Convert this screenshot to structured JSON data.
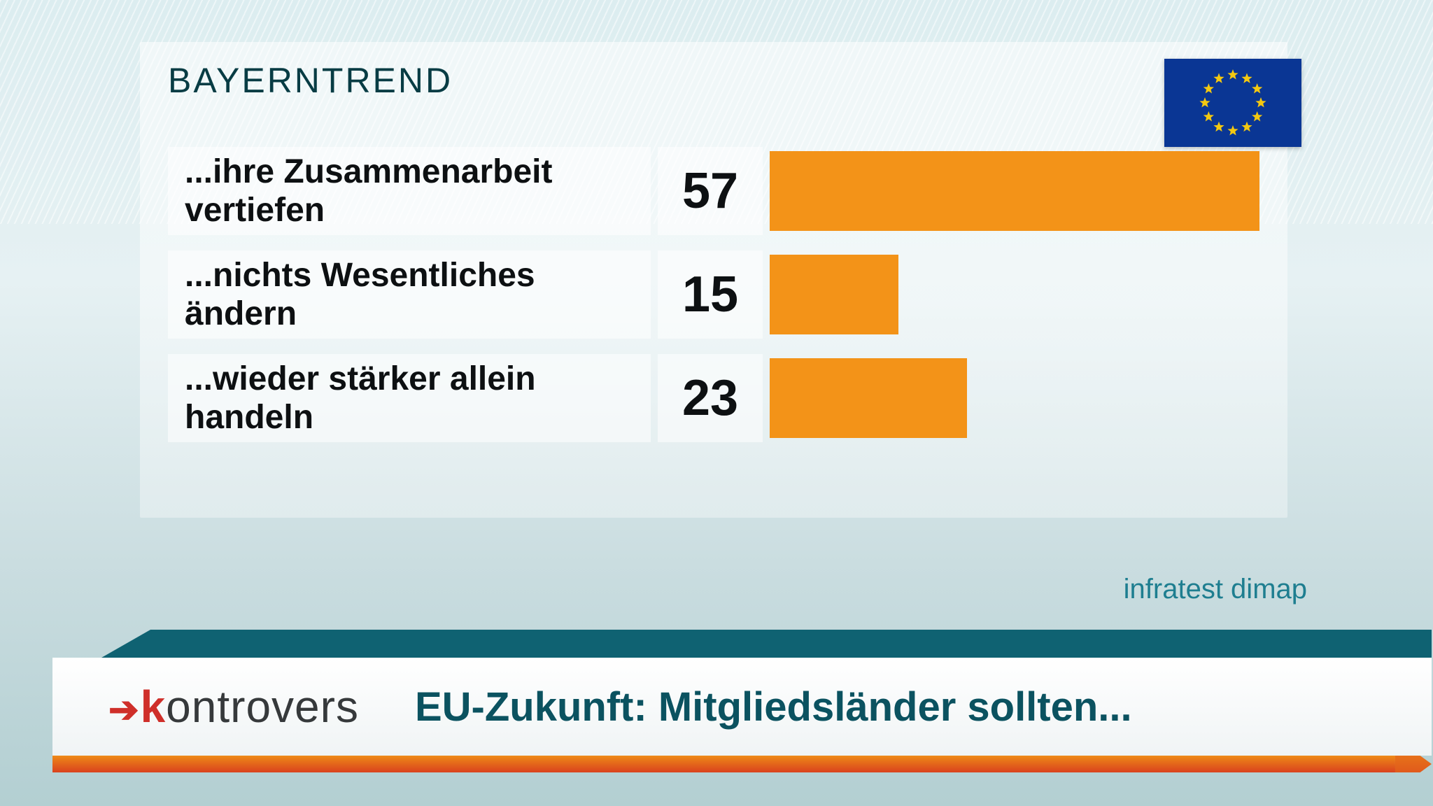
{
  "title": "BAYERNTREND",
  "chart": {
    "type": "bar",
    "bar_color": "#f39318",
    "label_bg": "rgba(255,255,255,0.55)",
    "label_fontsize": 48,
    "value_fontsize": 72,
    "max_value": 57,
    "rows": [
      {
        "label": "...ihre Zusammenarbeit vertiefen",
        "value": 57
      },
      {
        "label": "...nichts Wesentliches ändern",
        "value": 15
      },
      {
        "label": "...wieder stärker allein handeln",
        "value": 23
      }
    ]
  },
  "flag": {
    "bg": "#0a3694",
    "star": "#f4c810",
    "stars": 12
  },
  "source": "infratest dimap",
  "lower_third": {
    "show_name": "kontrovers",
    "question": "EU-Zukunft: Mitgliedsländer sollten...",
    "teal": "#0f6272",
    "orange_top": "#ee8a17",
    "orange_bottom": "#d9411e",
    "arrow_red": "#cf2f2a"
  },
  "background": {
    "top": "#dcedf0",
    "bottom": "#b3cfd2"
  }
}
